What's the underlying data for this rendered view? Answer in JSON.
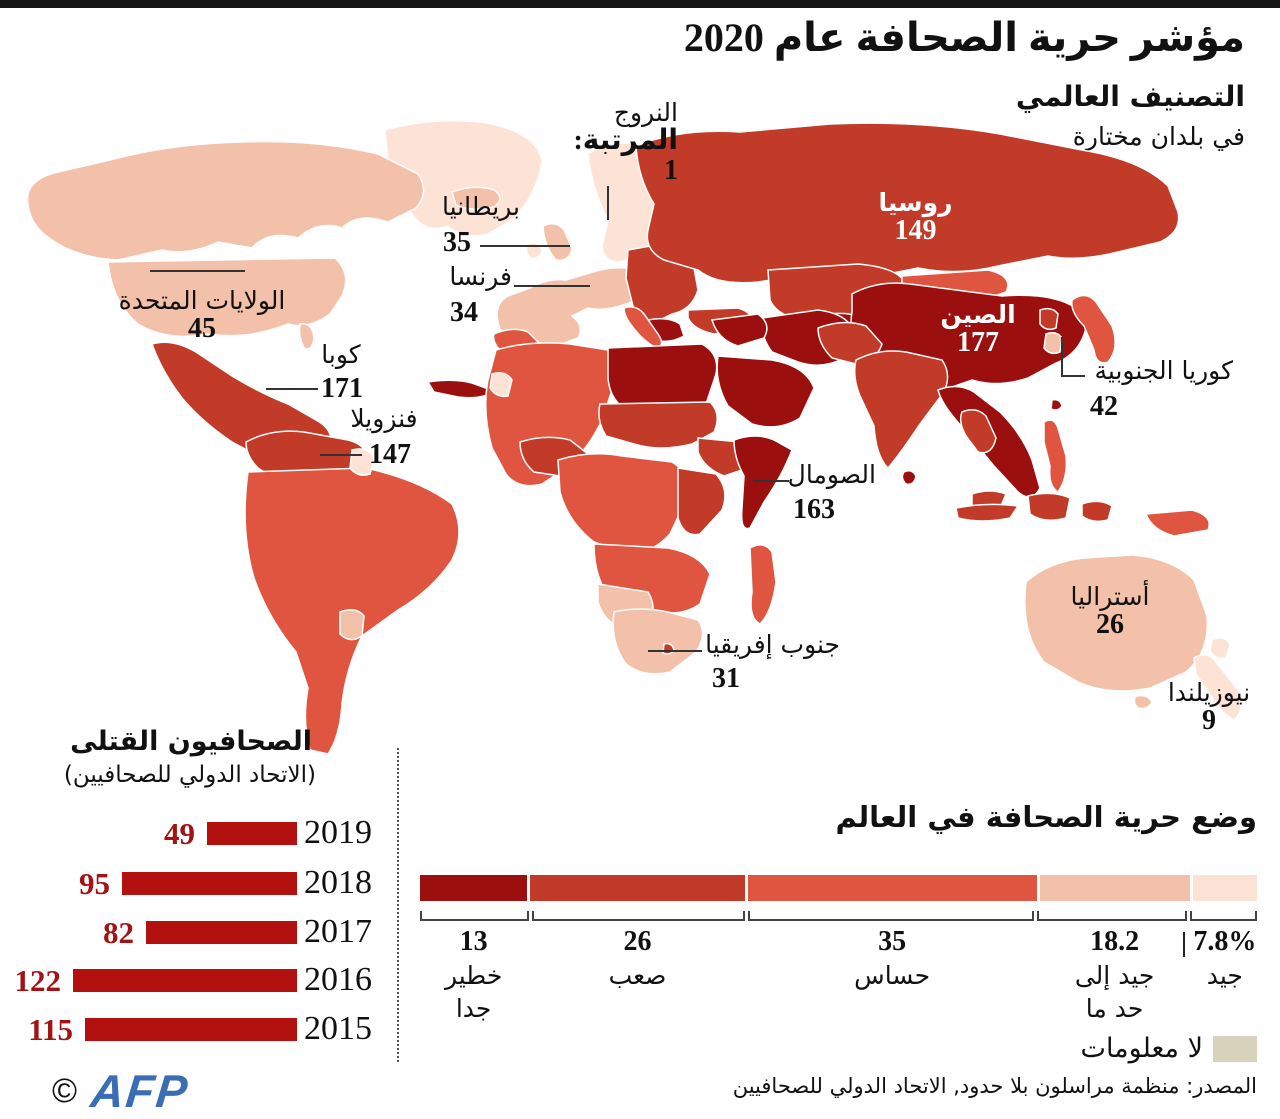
{
  "header": {
    "title": "مؤشر حرية الصحافة عام 2020",
    "subtitle_bold": "التصنيف العالمي",
    "subtitle": "في بلدان مختارة"
  },
  "scale": {
    "very_serious": {
      "value": "13",
      "label_line1": "خطير",
      "label_line2": "جدا",
      "color": "#9b0f0f"
    },
    "difficult": {
      "value": "26",
      "label_line1": "صعب",
      "label_line2": "",
      "color": "#c23a28"
    },
    "sensitive": {
      "value": "35",
      "label_line1": "حساس",
      "label_line2": "",
      "color": "#e05540"
    },
    "fairly_good": {
      "value": "18.2",
      "label_line1": "جيد إلى",
      "label_line2": "حد ما",
      "color": "#f3c0aa"
    },
    "good": {
      "value": "7.8%",
      "label_line1": "جيد",
      "label_line2": "",
      "color": "#fde2d6"
    },
    "no_info": {
      "label": "لا معلومات",
      "color": "#d8d1bb"
    }
  },
  "status_chart": {
    "title": "وضع حرية الصحافة في العالم",
    "segments": [
      13,
      26,
      35,
      18.2,
      7.8
    ]
  },
  "map_labels": {
    "norway": {
      "name": "النروج",
      "value": "المرتبة: 1"
    },
    "uk": {
      "name": "بريطانيا",
      "value": "35"
    },
    "france": {
      "name": "فرنسا",
      "value": "34"
    },
    "usa": {
      "name": "الولايات المتحدة",
      "value": "45"
    },
    "cuba": {
      "name": "كوبا",
      "value": "171"
    },
    "venezuela": {
      "name": "فنزويلا",
      "value": "147"
    },
    "russia": {
      "name": "روسيا",
      "value": "149"
    },
    "china": {
      "name": "الصين",
      "value": "177"
    },
    "south_korea": {
      "name": "كوريا الجنوبية",
      "value": "42"
    },
    "somalia": {
      "name": "الصومال",
      "value": "163"
    },
    "south_africa": {
      "name": "جنوب إفريقيا",
      "value": "31"
    },
    "australia": {
      "name": "أستراليا",
      "value": "26"
    },
    "new_zealand": {
      "name": "نيوزيلندا",
      "value": "9"
    }
  },
  "killed_chart": {
    "title": "الصحافيون القتلى",
    "subtitle": "(الاتحاد الدولي للصحافيين)",
    "bar_color": "#b31110",
    "value_color": "#a31315",
    "rows": [
      {
        "year": "2019",
        "value": 49
      },
      {
        "year": "2018",
        "value": 95
      },
      {
        "year": "2017",
        "value": 82
      },
      {
        "year": "2016",
        "value": 122
      },
      {
        "year": "2015",
        "value": 115
      }
    ]
  },
  "source": "المصدر: منظمة مراسلون بلا حدود, الاتحاد الدولي للصحافيين",
  "credit": {
    "copyright": "©",
    "logo": "AFP",
    "color": "#3a6db4"
  },
  "chart_data": [
    {
      "type": "bar",
      "orientation": "horizontal",
      "title": "الصحافيون القتلى (الاتحاد الدولي للصحافيين)",
      "categories": [
        "2019",
        "2018",
        "2017",
        "2016",
        "2015"
      ],
      "values": [
        49,
        95,
        82,
        122,
        115
      ],
      "bar_color": "#b31110"
    },
    {
      "type": "bar",
      "subtype": "stacked-percentage",
      "title": "وضع حرية الصحافة في العالم",
      "categories": [
        "خطير جدا",
        "صعب",
        "حساس",
        "جيد إلى حد ما",
        "جيد"
      ],
      "values": [
        13,
        26,
        35,
        18.2,
        7.8
      ],
      "unit": "%",
      "colors": [
        "#9b0f0f",
        "#c23a28",
        "#e05540",
        "#f3c0aa",
        "#fde2d6"
      ],
      "extra_legend": {
        "label": "لا معلومات",
        "color": "#d8d1bb"
      }
    },
    {
      "type": "heatmap",
      "subtype": "choropleth-world-map",
      "title": "التصنيف العالمي في بلدان مختارة",
      "points": [
        {
          "country": "النروج",
          "rank": 1
        },
        {
          "country": "أستراليا",
          "rank": 26
        },
        {
          "country": "جنوب إفريقيا",
          "rank": 31
        },
        {
          "country": "فرنسا",
          "rank": 34
        },
        {
          "country": "بريطانيا",
          "rank": 35
        },
        {
          "country": "كوريا الجنوبية",
          "rank": 42
        },
        {
          "country": "الولايات المتحدة",
          "rank": 45
        },
        {
          "country": "نيوزيلندا",
          "rank": 9
        },
        {
          "country": "فنزويلا",
          "rank": 147
        },
        {
          "country": "روسيا",
          "rank": 149
        },
        {
          "country": "الصومال",
          "rank": 163
        },
        {
          "country": "كوبا",
          "rank": 171
        },
        {
          "country": "الصين",
          "rank": 177
        }
      ]
    }
  ]
}
